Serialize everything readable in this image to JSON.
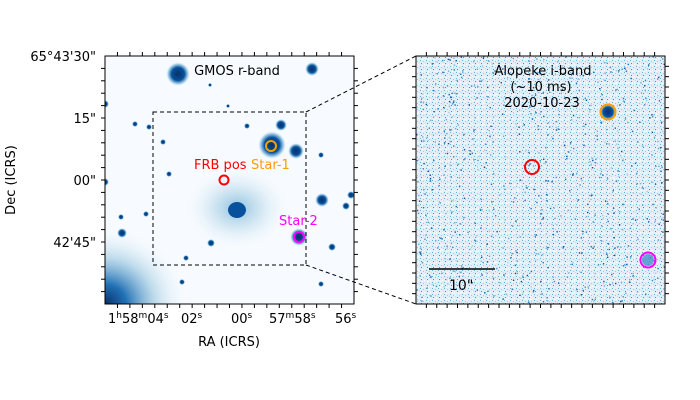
{
  "chart_data": [
    {
      "type": "image",
      "panel": "left",
      "title": "GMOS r-band",
      "xlabel": "RA (ICRS)",
      "ylabel": "Dec (ICRS)",
      "x_ticks": [
        {
          "main": "1",
          "h": "h",
          "m_val": "58",
          "m": "m",
          "s_val": "04",
          "s": "s"
        },
        {
          "main": "02",
          "s": "s"
        },
        {
          "main": "00",
          "s": "s"
        },
        {
          "m_val": "57",
          "m": "m",
          "s_val": "58",
          "s": "s"
        },
        {
          "main": "56",
          "s": "s"
        }
      ],
      "y_ticks": [
        "65°43'30\"",
        "15\"",
        "00\"",
        "42'45\""
      ],
      "markers": [
        {
          "name": "FRB pos",
          "color": "#ff0000"
        },
        {
          "name": "Star-1",
          "color": "#ff9d00"
        },
        {
          "name": "Star-2",
          "color": "#ff00ff"
        }
      ],
      "inset_box": "dashed"
    },
    {
      "type": "image",
      "panel": "right",
      "title_lines": [
        "Alopeke i-band",
        "(~10 ms)",
        "2020-10-23"
      ],
      "scalebar_label": "10\"",
      "markers": [
        {
          "name": "FRB pos",
          "color": "#ff0000"
        },
        {
          "name": "Star-1",
          "color": "#ff9d00"
        },
        {
          "name": "Star-2",
          "color": "#ff00ff"
        }
      ]
    }
  ],
  "colors": {
    "cmap_dark": "#08306b",
    "cmap_mid": "#2171b5",
    "cmap_light": "#c6dbef",
    "frb": "#ff0000",
    "star1": "#ff9d00",
    "star2": "#ff00ff"
  }
}
